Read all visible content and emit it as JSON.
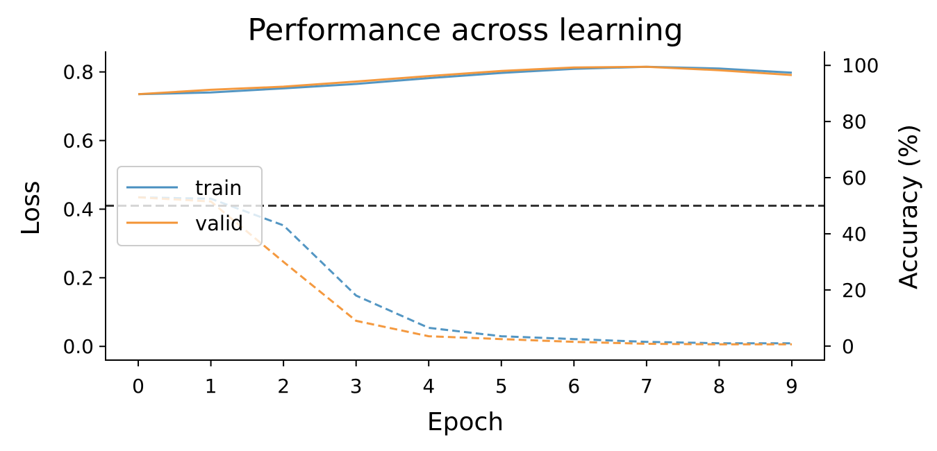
{
  "chart_data": {
    "type": "line",
    "title": "Performance across learning",
    "xlabel": "Epoch",
    "ylabel_left": "Loss",
    "ylabel_right": "Accuracy (%)",
    "x": [
      0,
      1,
      2,
      3,
      4,
      5,
      6,
      7,
      8,
      9
    ],
    "xlim": [
      -0.45,
      9.45
    ],
    "ylim_left": [
      -0.04,
      0.86
    ],
    "ylim_right": [
      -5,
      105
    ],
    "x_ticks": [
      0,
      1,
      2,
      3,
      4,
      5,
      6,
      7,
      8,
      9
    ],
    "y_ticks_left": [
      "0.0",
      "0.2",
      "0.4",
      "0.6",
      "0.8"
    ],
    "y_ticks_right": [
      "0",
      "20",
      "40",
      "60",
      "80",
      "100"
    ],
    "chance_level_accuracy": 50,
    "legend_position": "center-left",
    "grid": false,
    "series": [
      {
        "name": "train",
        "axis": "left",
        "style": "solid",
        "color": "#4a90c0",
        "values": [
          0.735,
          0.74,
          0.752,
          0.765,
          0.782,
          0.797,
          0.809,
          0.815,
          0.81,
          0.798
        ]
      },
      {
        "name": "valid",
        "axis": "left",
        "style": "solid",
        "color": "#f39435",
        "values": [
          0.735,
          0.748,
          0.757,
          0.772,
          0.788,
          0.803,
          0.813,
          0.815,
          0.805,
          0.791
        ]
      },
      {
        "name": "train",
        "axis": "right",
        "style": "dashed",
        "color": "#4a90c0",
        "values": [
          53,
          52.5,
          43,
          18,
          6.5,
          3.5,
          2.5,
          1.5,
          1,
          1
        ]
      },
      {
        "name": "valid",
        "axis": "right",
        "style": "dashed",
        "color": "#f39435",
        "values": [
          53,
          51.5,
          30,
          9,
          3.5,
          2.5,
          1.5,
          0.8,
          0.6,
          0.6
        ]
      }
    ]
  }
}
